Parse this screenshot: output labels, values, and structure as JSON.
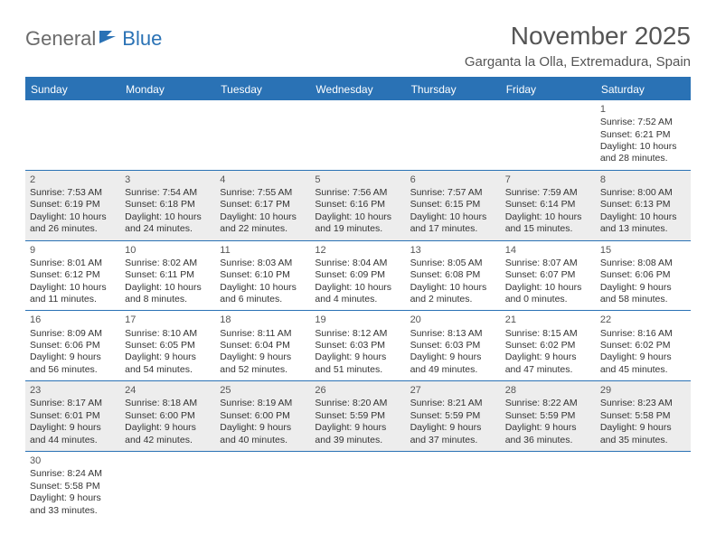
{
  "logo": {
    "part1": "General",
    "part2": "Blue"
  },
  "title": "November 2025",
  "location": "Garganta la Olla, Extremadura, Spain",
  "colors": {
    "header_bg": "#2a72b5",
    "header_text": "#ffffff",
    "shade_bg": "#ededed",
    "border": "#2a72b5",
    "text": "#333333",
    "logo_gray": "#6b6b6b",
    "logo_blue": "#2a72b5"
  },
  "columns": [
    "Sunday",
    "Monday",
    "Tuesday",
    "Wednesday",
    "Thursday",
    "Friday",
    "Saturday"
  ],
  "weeks": [
    [
      null,
      null,
      null,
      null,
      null,
      null,
      {
        "n": "1",
        "sunrise": "Sunrise: 7:52 AM",
        "sunset": "Sunset: 6:21 PM",
        "daylight": "Daylight: 10 hours and 28 minutes."
      }
    ],
    [
      {
        "n": "2",
        "sunrise": "Sunrise: 7:53 AM",
        "sunset": "Sunset: 6:19 PM",
        "daylight": "Daylight: 10 hours and 26 minutes."
      },
      {
        "n": "3",
        "sunrise": "Sunrise: 7:54 AM",
        "sunset": "Sunset: 6:18 PM",
        "daylight": "Daylight: 10 hours and 24 minutes."
      },
      {
        "n": "4",
        "sunrise": "Sunrise: 7:55 AM",
        "sunset": "Sunset: 6:17 PM",
        "daylight": "Daylight: 10 hours and 22 minutes."
      },
      {
        "n": "5",
        "sunrise": "Sunrise: 7:56 AM",
        "sunset": "Sunset: 6:16 PM",
        "daylight": "Daylight: 10 hours and 19 minutes."
      },
      {
        "n": "6",
        "sunrise": "Sunrise: 7:57 AM",
        "sunset": "Sunset: 6:15 PM",
        "daylight": "Daylight: 10 hours and 17 minutes."
      },
      {
        "n": "7",
        "sunrise": "Sunrise: 7:59 AM",
        "sunset": "Sunset: 6:14 PM",
        "daylight": "Daylight: 10 hours and 15 minutes."
      },
      {
        "n": "8",
        "sunrise": "Sunrise: 8:00 AM",
        "sunset": "Sunset: 6:13 PM",
        "daylight": "Daylight: 10 hours and 13 minutes."
      }
    ],
    [
      {
        "n": "9",
        "sunrise": "Sunrise: 8:01 AM",
        "sunset": "Sunset: 6:12 PM",
        "daylight": "Daylight: 10 hours and 11 minutes."
      },
      {
        "n": "10",
        "sunrise": "Sunrise: 8:02 AM",
        "sunset": "Sunset: 6:11 PM",
        "daylight": "Daylight: 10 hours and 8 minutes."
      },
      {
        "n": "11",
        "sunrise": "Sunrise: 8:03 AM",
        "sunset": "Sunset: 6:10 PM",
        "daylight": "Daylight: 10 hours and 6 minutes."
      },
      {
        "n": "12",
        "sunrise": "Sunrise: 8:04 AM",
        "sunset": "Sunset: 6:09 PM",
        "daylight": "Daylight: 10 hours and 4 minutes."
      },
      {
        "n": "13",
        "sunrise": "Sunrise: 8:05 AM",
        "sunset": "Sunset: 6:08 PM",
        "daylight": "Daylight: 10 hours and 2 minutes."
      },
      {
        "n": "14",
        "sunrise": "Sunrise: 8:07 AM",
        "sunset": "Sunset: 6:07 PM",
        "daylight": "Daylight: 10 hours and 0 minutes."
      },
      {
        "n": "15",
        "sunrise": "Sunrise: 8:08 AM",
        "sunset": "Sunset: 6:06 PM",
        "daylight": "Daylight: 9 hours and 58 minutes."
      }
    ],
    [
      {
        "n": "16",
        "sunrise": "Sunrise: 8:09 AM",
        "sunset": "Sunset: 6:06 PM",
        "daylight": "Daylight: 9 hours and 56 minutes."
      },
      {
        "n": "17",
        "sunrise": "Sunrise: 8:10 AM",
        "sunset": "Sunset: 6:05 PM",
        "daylight": "Daylight: 9 hours and 54 minutes."
      },
      {
        "n": "18",
        "sunrise": "Sunrise: 8:11 AM",
        "sunset": "Sunset: 6:04 PM",
        "daylight": "Daylight: 9 hours and 52 minutes."
      },
      {
        "n": "19",
        "sunrise": "Sunrise: 8:12 AM",
        "sunset": "Sunset: 6:03 PM",
        "daylight": "Daylight: 9 hours and 51 minutes."
      },
      {
        "n": "20",
        "sunrise": "Sunrise: 8:13 AM",
        "sunset": "Sunset: 6:03 PM",
        "daylight": "Daylight: 9 hours and 49 minutes."
      },
      {
        "n": "21",
        "sunrise": "Sunrise: 8:15 AM",
        "sunset": "Sunset: 6:02 PM",
        "daylight": "Daylight: 9 hours and 47 minutes."
      },
      {
        "n": "22",
        "sunrise": "Sunrise: 8:16 AM",
        "sunset": "Sunset: 6:02 PM",
        "daylight": "Daylight: 9 hours and 45 minutes."
      }
    ],
    [
      {
        "n": "23",
        "sunrise": "Sunrise: 8:17 AM",
        "sunset": "Sunset: 6:01 PM",
        "daylight": "Daylight: 9 hours and 44 minutes."
      },
      {
        "n": "24",
        "sunrise": "Sunrise: 8:18 AM",
        "sunset": "Sunset: 6:00 PM",
        "daylight": "Daylight: 9 hours and 42 minutes."
      },
      {
        "n": "25",
        "sunrise": "Sunrise: 8:19 AM",
        "sunset": "Sunset: 6:00 PM",
        "daylight": "Daylight: 9 hours and 40 minutes."
      },
      {
        "n": "26",
        "sunrise": "Sunrise: 8:20 AM",
        "sunset": "Sunset: 5:59 PM",
        "daylight": "Daylight: 9 hours and 39 minutes."
      },
      {
        "n": "27",
        "sunrise": "Sunrise: 8:21 AM",
        "sunset": "Sunset: 5:59 PM",
        "daylight": "Daylight: 9 hours and 37 minutes."
      },
      {
        "n": "28",
        "sunrise": "Sunrise: 8:22 AM",
        "sunset": "Sunset: 5:59 PM",
        "daylight": "Daylight: 9 hours and 36 minutes."
      },
      {
        "n": "29",
        "sunrise": "Sunrise: 8:23 AM",
        "sunset": "Sunset: 5:58 PM",
        "daylight": "Daylight: 9 hours and 35 minutes."
      }
    ],
    [
      {
        "n": "30",
        "sunrise": "Sunrise: 8:24 AM",
        "sunset": "Sunset: 5:58 PM",
        "daylight": "Daylight: 9 hours and 33 minutes."
      },
      null,
      null,
      null,
      null,
      null,
      null
    ]
  ]
}
